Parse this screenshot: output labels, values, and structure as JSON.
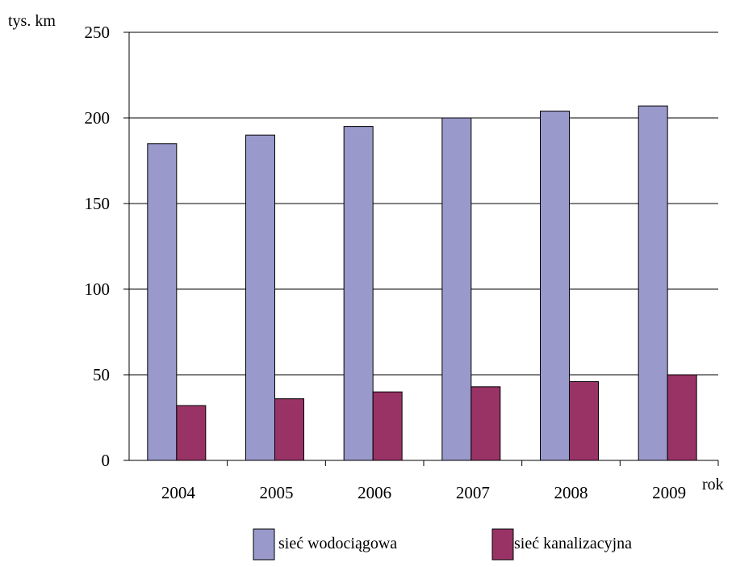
{
  "chart_data": {
    "type": "bar",
    "ylabel": "tys. km",
    "xlabel": "rok",
    "categories": [
      "2004",
      "2005",
      "2006",
      "2007",
      "2008",
      "2009"
    ],
    "series": [
      {
        "name": "sieć wodociągowa",
        "values": [
          185,
          190,
          195,
          200,
          204,
          207
        ],
        "color": "#9999cc"
      },
      {
        "name": "sieć kanalizacyjna",
        "values": [
          32,
          36,
          40,
          43,
          46,
          50
        ],
        "color": "#993366"
      }
    ],
    "ylim": [
      0,
      250
    ],
    "yticks": [
      "0",
      "50",
      "100",
      "150",
      "200",
      "250"
    ],
    "grid": true,
    "legend_position": "bottom"
  }
}
